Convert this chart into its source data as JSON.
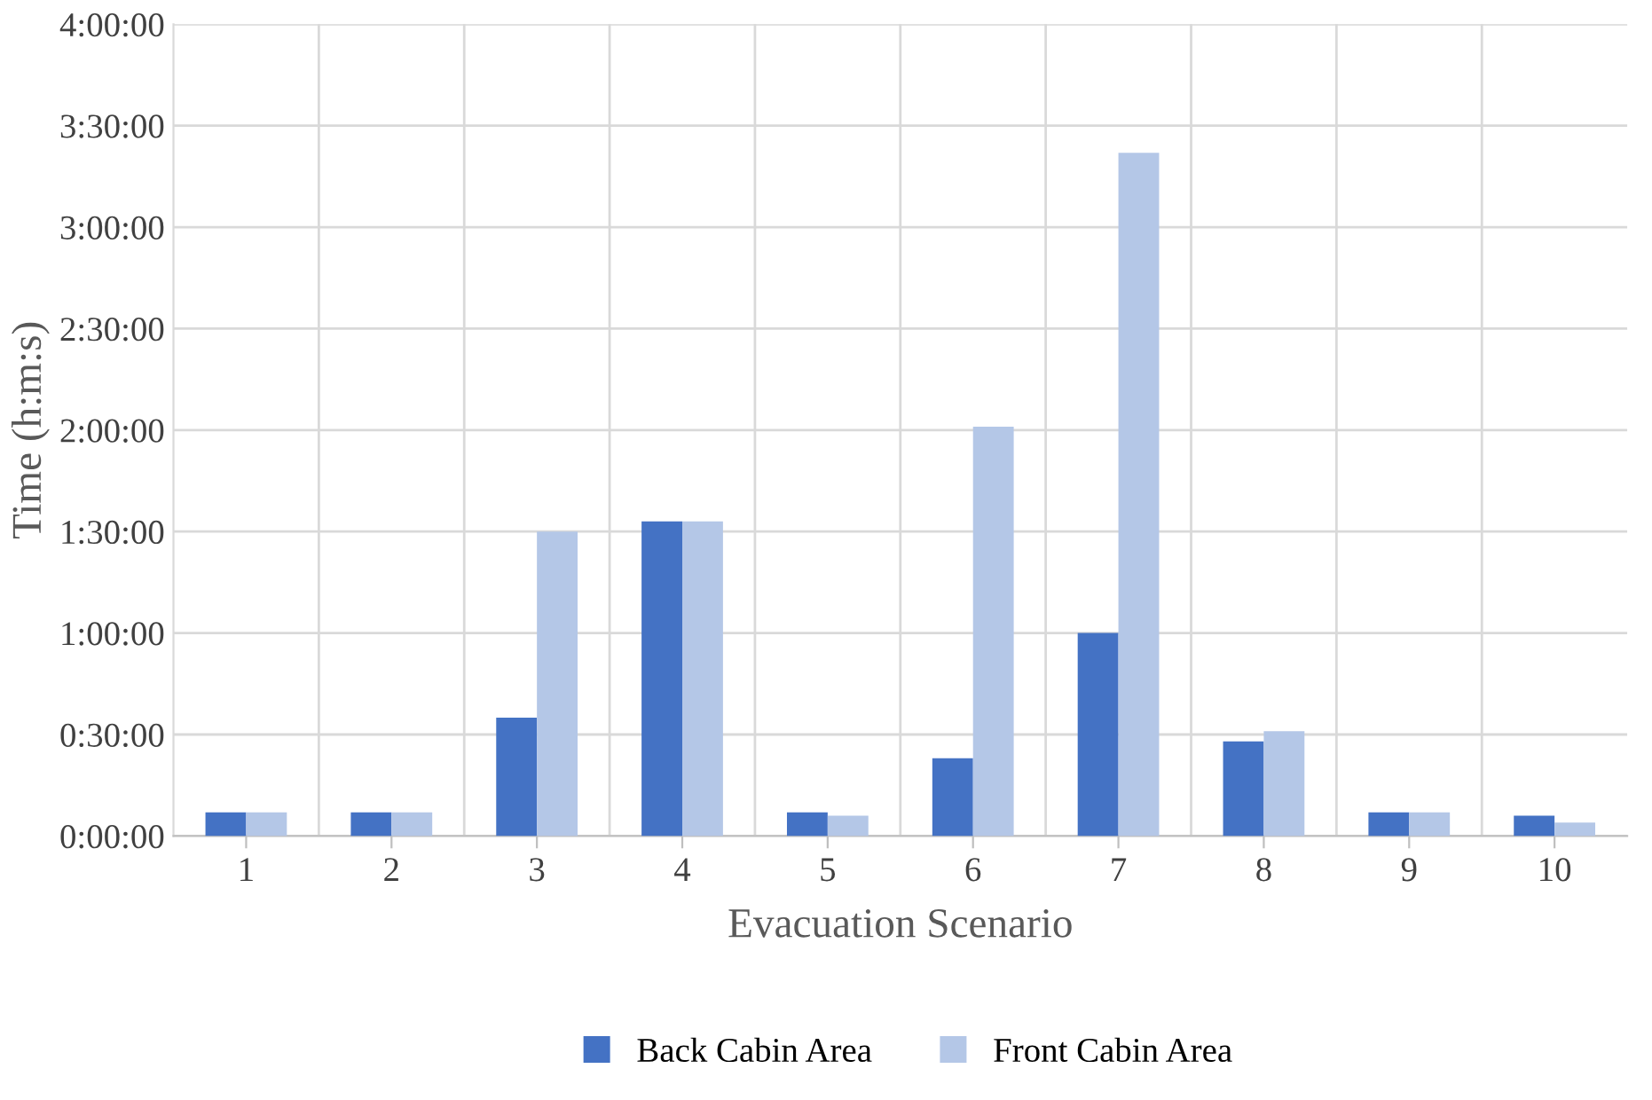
{
  "chart_data": {
    "type": "bar",
    "xlabel": "Evacuation Scenario",
    "ylabel": "Time (h:m:s)",
    "categories": [
      "1",
      "2",
      "3",
      "4",
      "5",
      "6",
      "7",
      "8",
      "9",
      "10"
    ],
    "series": [
      {
        "name": "Back Cabin Area",
        "color": "#4472c4",
        "values": [
          7,
          7,
          35,
          93,
          7,
          23,
          60,
          28,
          7,
          6
        ]
      },
      {
        "name": "Front Cabin Area",
        "color": "#b4c7e7",
        "values": [
          7,
          7,
          90,
          93,
          6,
          121,
          202,
          31,
          7,
          4
        ]
      }
    ],
    "ylim": [
      0,
      240
    ],
    "yticks": [
      {
        "value": 0,
        "label": "0:00:00"
      },
      {
        "value": 30,
        "label": "0:30:00"
      },
      {
        "value": 60,
        "label": "1:00:00"
      },
      {
        "value": 90,
        "label": "1:30:00"
      },
      {
        "value": 120,
        "label": "2:00:00"
      },
      {
        "value": 150,
        "label": "2:30:00"
      },
      {
        "value": 180,
        "label": "3:00:00"
      },
      {
        "value": 210,
        "label": "3:30:00"
      },
      {
        "value": 240,
        "label": "4:00:00"
      }
    ],
    "grid": true,
    "legend": "bottom"
  }
}
